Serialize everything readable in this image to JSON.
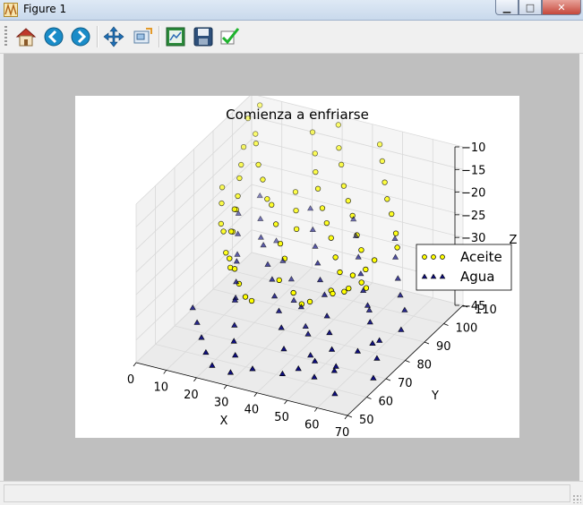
{
  "window": {
    "title": "Figure 1",
    "min_symbol": "▁",
    "max_symbol": "□",
    "close_symbol": "✕"
  },
  "toolbar": {
    "buttons": [
      {
        "name": "home-icon"
      },
      {
        "name": "back-icon"
      },
      {
        "name": "forward-icon"
      },
      {
        "name": "pan-icon"
      },
      {
        "name": "zoom-icon"
      },
      {
        "name": "subplots-icon"
      },
      {
        "name": "save-icon"
      },
      {
        "name": "check-icon"
      }
    ]
  },
  "chart_data": {
    "type": "scatter",
    "projection": "3d",
    "title": "Comienza a enfriarse",
    "xlabel": "X",
    "ylabel": "Y",
    "zlabel": "Z",
    "xlim": [
      0,
      70
    ],
    "ylim": [
      50,
      110
    ],
    "zlim": [
      -45,
      -10
    ],
    "xticks": [
      "0",
      "10",
      "20",
      "30",
      "40",
      "50",
      "60",
      "70"
    ],
    "yticks": [
      "50",
      "60",
      "70",
      "80",
      "90",
      "100",
      "110"
    ],
    "zticks": [
      "−45",
      "−40",
      "−35",
      "−30",
      "−25",
      "−20",
      "−15",
      "−10"
    ],
    "legend_position": "right",
    "series": [
      {
        "name": "Aceite",
        "marker": "circle",
        "color": "#ffff00",
        "points": [
          [
            2,
            105,
            -13
          ],
          [
            5,
            98,
            -16
          ],
          [
            8,
            92,
            -17
          ],
          [
            10,
            88,
            -18
          ],
          [
            12,
            84,
            -20
          ],
          [
            14,
            80,
            -21
          ],
          [
            16,
            76,
            -19
          ],
          [
            18,
            72,
            -22
          ],
          [
            20,
            68,
            -20
          ],
          [
            22,
            64,
            -24
          ],
          [
            4,
            108,
            -11
          ],
          [
            7,
            101,
            -14
          ],
          [
            11,
            95,
            -13
          ],
          [
            15,
            90,
            -15
          ],
          [
            19,
            86,
            -16
          ],
          [
            23,
            82,
            -18
          ],
          [
            27,
            78,
            -17
          ],
          [
            31,
            74,
            -19
          ],
          [
            35,
            70,
            -21
          ],
          [
            39,
            66,
            -22
          ],
          [
            24,
            104,
            -12
          ],
          [
            28,
            99,
            -14
          ],
          [
            32,
            93,
            -15
          ],
          [
            36,
            88,
            -16
          ],
          [
            40,
            84,
            -18
          ],
          [
            44,
            80,
            -19
          ],
          [
            48,
            76,
            -20
          ],
          [
            52,
            72,
            -22
          ],
          [
            56,
            68,
            -23
          ],
          [
            60,
            64,
            -25
          ],
          [
            30,
            108,
            -11
          ],
          [
            34,
            102,
            -13
          ],
          [
            38,
            97,
            -14
          ],
          [
            42,
            92,
            -16
          ],
          [
            46,
            88,
            -17
          ],
          [
            50,
            84,
            -18
          ],
          [
            54,
            80,
            -20
          ],
          [
            58,
            76,
            -21
          ],
          [
            62,
            72,
            -23
          ],
          [
            66,
            66,
            -24
          ],
          [
            45,
            106,
            -12
          ],
          [
            49,
            101,
            -13
          ],
          [
            53,
            96,
            -15
          ],
          [
            57,
            91,
            -16
          ],
          [
            61,
            87,
            -17
          ],
          [
            65,
            83,
            -19
          ],
          [
            68,
            79,
            -20
          ],
          [
            63,
            75,
            -22
          ],
          [
            59,
            70,
            -24
          ],
          [
            55,
            65,
            -26
          ],
          [
            3,
            90,
            -22
          ],
          [
            6,
            85,
            -23
          ],
          [
            9,
            80,
            -25
          ],
          [
            13,
            75,
            -24
          ],
          [
            17,
            70,
            -26
          ],
          [
            21,
            66,
            -27
          ],
          [
            25,
            62,
            -25
          ],
          [
            29,
            58,
            -26
          ],
          [
            33,
            55,
            -27
          ],
          [
            37,
            52,
            -26
          ],
          [
            41,
            60,
            -24
          ],
          [
            47,
            58,
            -25
          ],
          [
            51,
            56,
            -26
          ],
          [
            55,
            54,
            -24
          ],
          [
            60,
            58,
            -23
          ],
          [
            64,
            60,
            -22
          ],
          [
            67,
            62,
            -21
          ],
          [
            26,
            92,
            -20
          ],
          [
            30,
            86,
            -21
          ],
          [
            34,
            80,
            -22
          ]
        ]
      },
      {
        "name": "Agua",
        "marker": "triangle",
        "color": "#0d0d80",
        "points": [
          [
            2,
            100,
            -32
          ],
          [
            5,
            95,
            -34
          ],
          [
            8,
            90,
            -36
          ],
          [
            11,
            85,
            -35
          ],
          [
            14,
            80,
            -37
          ],
          [
            17,
            75,
            -38
          ],
          [
            20,
            70,
            -36
          ],
          [
            23,
            65,
            -39
          ],
          [
            26,
            60,
            -40
          ],
          [
            29,
            56,
            -41
          ],
          [
            4,
            108,
            -31
          ],
          [
            8,
            102,
            -33
          ],
          [
            12,
            96,
            -34
          ],
          [
            16,
            91,
            -33
          ],
          [
            20,
            87,
            -35
          ],
          [
            24,
            83,
            -36
          ],
          [
            28,
            78,
            -37
          ],
          [
            32,
            74,
            -38
          ],
          [
            36,
            69,
            -39
          ],
          [
            40,
            64,
            -41
          ],
          [
            22,
            106,
            -30
          ],
          [
            26,
            101,
            -32
          ],
          [
            30,
            96,
            -33
          ],
          [
            34,
            91,
            -34
          ],
          [
            38,
            86,
            -35
          ],
          [
            42,
            82,
            -36
          ],
          [
            46,
            77,
            -38
          ],
          [
            50,
            72,
            -39
          ],
          [
            54,
            67,
            -40
          ],
          [
            58,
            62,
            -42
          ],
          [
            35,
            108,
            -31
          ],
          [
            39,
            103,
            -32
          ],
          [
            43,
            98,
            -34
          ],
          [
            47,
            93,
            -35
          ],
          [
            51,
            88,
            -36
          ],
          [
            55,
            84,
            -37
          ],
          [
            59,
            79,
            -38
          ],
          [
            63,
            74,
            -40
          ],
          [
            67,
            70,
            -41
          ],
          [
            69,
            65,
            -43
          ],
          [
            50,
            106,
            -32
          ],
          [
            54,
            100,
            -33
          ],
          [
            58,
            95,
            -35
          ],
          [
            62,
            90,
            -36
          ],
          [
            66,
            86,
            -37
          ],
          [
            68,
            81,
            -39
          ],
          [
            64,
            76,
            -40
          ],
          [
            60,
            71,
            -41
          ],
          [
            56,
            66,
            -43
          ],
          [
            52,
            61,
            -44
          ],
          [
            6,
            70,
            -40
          ],
          [
            10,
            66,
            -41
          ],
          [
            14,
            62,
            -42
          ],
          [
            18,
            58,
            -43
          ],
          [
            22,
            55,
            -44
          ],
          [
            30,
            52,
            -43
          ],
          [
            36,
            54,
            -42
          ],
          [
            44,
            57,
            -43
          ],
          [
            48,
            59,
            -42
          ],
          [
            62,
            56,
            -44
          ],
          [
            12,
            104,
            -38
          ],
          [
            18,
            98,
            -39
          ],
          [
            24,
            93,
            -40
          ],
          [
            28,
            88,
            -42
          ],
          [
            33,
            84,
            -41
          ],
          [
            37,
            80,
            -43
          ],
          [
            41,
            75,
            -42
          ],
          [
            45,
            70,
            -44
          ],
          [
            49,
            66,
            -43
          ],
          [
            53,
            88,
            -40
          ]
        ]
      }
    ]
  }
}
